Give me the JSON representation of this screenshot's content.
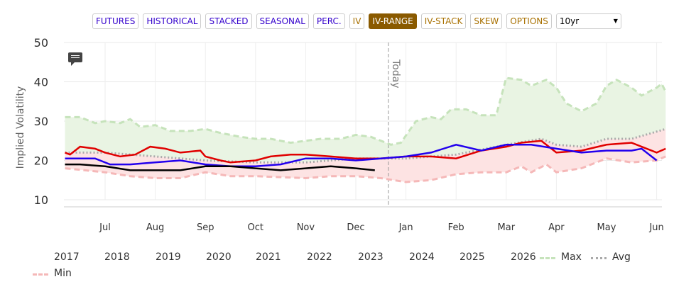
{
  "toolbar": {
    "buttons": [
      "FUTURES",
      "HISTORICAL",
      "STACKED",
      "SEASONAL",
      "PERC.",
      "IV",
      "IV-RANGE",
      "IV-STACK",
      "SKEW",
      "OPTIONS"
    ],
    "active": "IV-RANGE",
    "range_select": "10yr"
  },
  "chart_data": {
    "type": "line",
    "ylabel": "Implied Volatility",
    "ylim": [
      10,
      50
    ],
    "yticks": [
      10,
      20,
      30,
      40,
      50
    ],
    "xticks": [
      "Jul",
      "Aug",
      "Sep",
      "Oct",
      "Nov",
      "Dec",
      "Jan",
      "Feb",
      "Mar",
      "Apr",
      "May",
      "Jun"
    ],
    "today_label": "Today",
    "today_x": 6.65,
    "legend": [
      "2017",
      "2018",
      "2019",
      "2020",
      "2021",
      "2022",
      "2023",
      "2024",
      "2025",
      "2026",
      "Max",
      "Avg",
      "Min"
    ],
    "series": [
      {
        "name": "Max",
        "color": "#c6e3bb",
        "x": [
          0.2,
          0.5,
          0.8,
          1,
          1.3,
          1.5,
          1.7,
          2,
          2.3,
          2.7,
          3,
          3.3,
          3.7,
          4,
          4.3,
          4.7,
          5,
          5.3,
          5.7,
          6,
          6.3,
          6.7,
          6.9,
          7.2,
          7.5,
          7.7,
          7.9,
          8.2,
          8.5,
          8.8,
          9,
          9.3,
          9.5,
          9.8,
          10,
          10.2,
          10.5,
          10.8,
          11,
          11.2,
          11.5,
          11.7,
          12,
          12.1,
          12.18
        ],
        "y": [
          31,
          31,
          29.5,
          30,
          29.5,
          30.5,
          28.5,
          29,
          27.5,
          27.5,
          28,
          27,
          26,
          25.5,
          25.5,
          24.5,
          25,
          25.5,
          25.5,
          26.5,
          26,
          24,
          24.5,
          30,
          31,
          30.5,
          33,
          33,
          31.5,
          31.5,
          41,
          40.5,
          39,
          40.5,
          38.5,
          34.5,
          32.5,
          34.5,
          39,
          40.5,
          38.5,
          36.5,
          38.5,
          39.5,
          37.5
        ]
      },
      {
        "name": "Avg",
        "color": "#aaaaaa",
        "x": [
          0.2,
          1,
          2,
          3,
          4,
          5,
          6,
          7,
          8,
          9,
          9.7,
          10,
          10.5,
          11,
          11.5,
          12.18
        ],
        "y": [
          22,
          22,
          21,
          20,
          19.5,
          19.5,
          20.5,
          20.5,
          21.5,
          24,
          25.5,
          24,
          23.5,
          25.5,
          25.5,
          28
        ]
      },
      {
        "name": "Min",
        "color": "#f5b8b8",
        "x": [
          0.2,
          1,
          1.5,
          2,
          2.5,
          3,
          3.5,
          4,
          5,
          5.5,
          6,
          6.5,
          7,
          7.5,
          8,
          8.5,
          9,
          9.3,
          9.5,
          9.8,
          10,
          10.5,
          11,
          11.5,
          12,
          12.18
        ],
        "y": [
          18,
          17,
          16,
          15.5,
          15.5,
          17,
          16,
          16,
          15.5,
          16,
          16,
          15.5,
          14.5,
          15,
          16.5,
          17,
          17,
          18.5,
          17,
          19,
          17,
          18,
          20.5,
          19.5,
          20,
          21
        ]
      },
      {
        "name": "red",
        "color": "#e00000",
        "x": [
          0.2,
          0.3,
          0.5,
          0.8,
          1,
          1.3,
          1.6,
          1.9,
          2.2,
          2.5,
          2.9,
          3,
          3.3,
          3.5,
          4,
          4.3,
          4.7,
          5,
          5.5,
          6,
          6.5,
          7,
          7.5,
          8,
          8.5,
          9,
          9.3,
          9.7,
          10,
          10.5,
          11,
          11.5,
          12,
          12.18
        ],
        "y": [
          22,
          21.5,
          23.5,
          23,
          22,
          21,
          21.5,
          23.5,
          23,
          22,
          22.5,
          21,
          20,
          19.5,
          20,
          21,
          21.5,
          21.5,
          21,
          20.5,
          20.5,
          21,
          21,
          20.5,
          22.5,
          23.5,
          24.5,
          25,
          22,
          22.5,
          24,
          24.5,
          22,
          23
        ]
      },
      {
        "name": "blue",
        "color": "#2200ee",
        "x": [
          0.2,
          0.8,
          1.1,
          1.5,
          2,
          2.5,
          3,
          3.5,
          4,
          4.5,
          5,
          5.5,
          6,
          6.5,
          7,
          7.5,
          8,
          8.5,
          9,
          9.5,
          10,
          10.5,
          11,
          11.5,
          11.7,
          12
        ],
        "y": [
          20.5,
          20.5,
          19,
          19,
          19.5,
          20,
          19,
          18.5,
          18.5,
          19,
          20.5,
          20.5,
          20,
          20.5,
          21,
          22,
          24,
          22.5,
          24,
          24,
          23,
          22,
          22.5,
          22.5,
          23,
          20
        ]
      },
      {
        "name": "black",
        "color": "#000000",
        "x": [
          0.2,
          0.5,
          1,
          1.5,
          2,
          2.5,
          3,
          3.5,
          4,
          4.5,
          5,
          5.5,
          6,
          6.38
        ],
        "y": [
          19,
          19,
          18.5,
          17.5,
          17.5,
          17.5,
          18.5,
          18.5,
          18,
          17.5,
          18,
          18.5,
          18,
          17.5
        ]
      }
    ]
  }
}
